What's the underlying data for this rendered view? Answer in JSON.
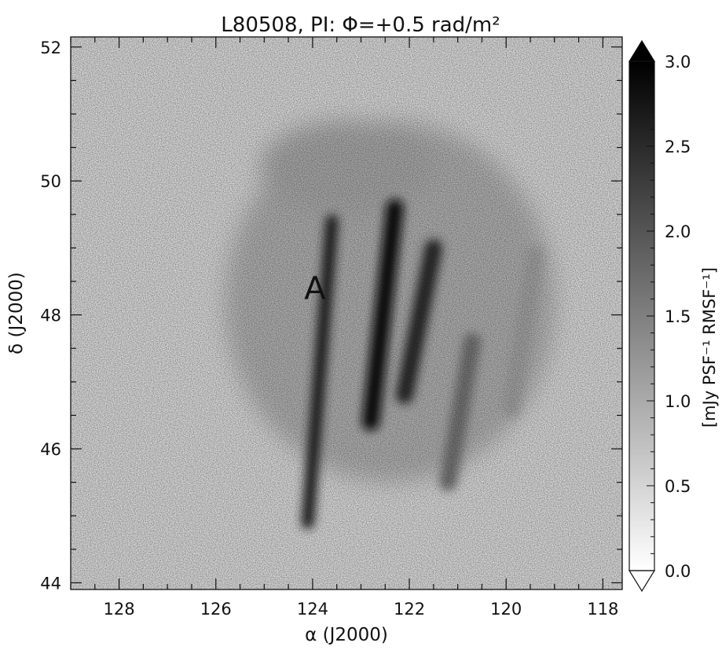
{
  "chart_data": {
    "type": "heatmap",
    "title": "L80508, PI: Φ=+0.5 rad/m²",
    "xlabel": "α (J2000)",
    "ylabel": "δ (J2000)",
    "xlim": [
      129.0,
      117.6
    ],
    "ylim": [
      43.9,
      52.15
    ],
    "xticks": [
      128,
      126,
      124,
      122,
      120,
      118
    ],
    "yticks": [
      44,
      46,
      48,
      50,
      52
    ],
    "annotation": {
      "text": "A",
      "x": 123.95,
      "y": 48.4
    },
    "colorbar": {
      "label": "[mJy PSF⁻¹ RMSF⁻¹]",
      "ticks": [
        "0.0",
        "0.5",
        "1.0",
        "1.5",
        "2.0",
        "2.5",
        "3.0"
      ],
      "min": 0.0,
      "max": 3.0,
      "colormap": "inverted-grayscale",
      "extend": "both"
    },
    "features": [
      {
        "name": "A",
        "ra": [
          124.1,
          123.6
        ],
        "dec": [
          44.9,
          49.4
        ],
        "level": 2.6
      },
      {
        "ra": [
          122.8,
          122.3
        ],
        "dec": [
          46.4,
          49.6
        ],
        "level": 2.8
      },
      {
        "ra": [
          122.1,
          121.5
        ],
        "dec": [
          46.8,
          49.0
        ],
        "level": 2.5
      },
      {
        "ra": [
          121.2,
          120.7
        ],
        "dec": [
          45.5,
          47.6
        ],
        "level": 1.6
      },
      {
        "ra": [
          119.9,
          119.4
        ],
        "dec": [
          46.6,
          48.9
        ],
        "level": 1.0
      }
    ]
  },
  "colors": {
    "low": "#ffffff",
    "high": "#000000",
    "noise": "#dcdcdc"
  }
}
